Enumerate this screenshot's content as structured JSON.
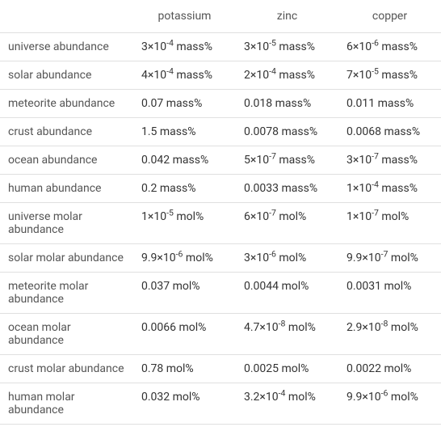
{
  "columns": [
    "",
    "potassium",
    "zinc",
    "copper"
  ],
  "rows": [
    {
      "label": "universe abundance",
      "values": [
        "3×10<sup>-4</sup> mass%",
        "3×10<sup>-5</sup> mass%",
        "6×10<sup>-6</sup> mass%"
      ]
    },
    {
      "label": "solar abundance",
      "values": [
        "4×10<sup>-4</sup> mass%",
        "2×10<sup>-4</sup> mass%",
        "7×10<sup>-5</sup> mass%"
      ]
    },
    {
      "label": "meteorite abundance",
      "values": [
        "0.07 mass%",
        "0.018 mass%",
        "0.011 mass%"
      ]
    },
    {
      "label": "crust abundance",
      "values": [
        "1.5 mass%",
        "0.0078 mass%",
        "0.0068 mass%"
      ]
    },
    {
      "label": "ocean abundance",
      "values": [
        "0.042 mass%",
        "5×10<sup>-7</sup> mass%",
        "3×10<sup>-7</sup> mass%"
      ]
    },
    {
      "label": "human abundance",
      "values": [
        "0.2 mass%",
        "0.0033 mass%",
        "1×10<sup>-4</sup> mass%"
      ]
    },
    {
      "label": "universe molar abundance",
      "values": [
        "1×10<sup>-5</sup> mol%",
        "6×10<sup>-7</sup> mol%",
        "1×10<sup>-7</sup> mol%"
      ]
    },
    {
      "label": "solar molar abundance",
      "values": [
        "9.9×10<sup>-6</sup> mol%",
        "3×10<sup>-6</sup> mol%",
        "9.9×10<sup>-7</sup> mol%"
      ]
    },
    {
      "label": "meteorite molar abundance",
      "values": [
        "0.037 mol%",
        "0.0044 mol%",
        "0.0031 mol%"
      ]
    },
    {
      "label": "ocean molar abundance",
      "values": [
        "0.0066 mol%",
        "4.7×10<sup>-8</sup> mol%",
        "2.9×10<sup>-8</sup> mol%"
      ]
    },
    {
      "label": "crust molar abundance",
      "values": [
        "0.78 mol%",
        "0.0025 mol%",
        "0.0022 mol%"
      ]
    },
    {
      "label": "human molar abundance",
      "values": [
        "0.032 mol%",
        "3.2×10<sup>-4</sup> mol%",
        "9.9×10<sup>-6</sup> mol%"
      ]
    }
  ],
  "colors": {
    "border": "#e0e0e0",
    "text": "#333",
    "header_text": "#555",
    "background": "#ffffff"
  },
  "font_size": 14
}
